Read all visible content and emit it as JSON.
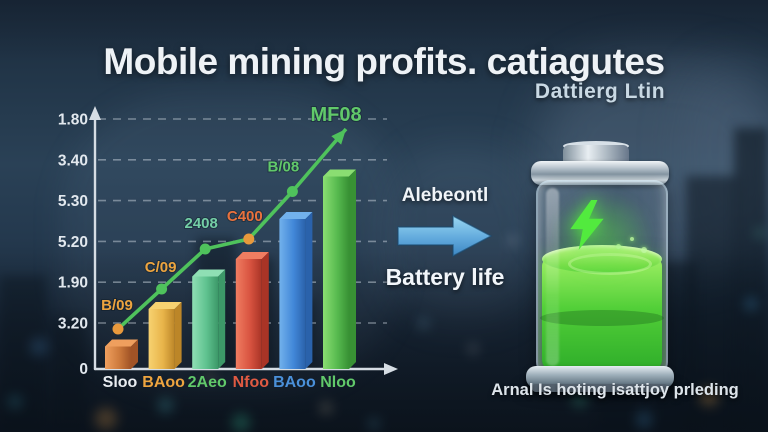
{
  "title": "Mobile mining profits. catiagutes",
  "colors": {
    "background_top": "#1b2a3b",
    "background_bottom": "#101a26",
    "title_text": "#eef2f6",
    "axis": "#d6dde4",
    "grid": "#c6d0da",
    "trend_line_green": "#4fc25c",
    "arrow_blue_light": "#9ad8f2",
    "arrow_blue_dark": "#4a94cc",
    "battery_liquid_green": "#52cf38",
    "bolt_green": "#52ea3e",
    "silver": "#b6c2cc"
  },
  "chart_data": {
    "type": "bar",
    "subtype": "bar-with-trend-line-overlay",
    "grid": "dashed-horizontal",
    "ylim": [
      0,
      100
    ],
    "y_tick_labels": [
      "1.80",
      "3.40",
      "5.30",
      "5.20",
      "1.90",
      "3.20"
    ],
    "y_origin_label": "0",
    "categories": [
      "Sloo",
      "BAoo",
      "2Aeo",
      "Nfoo",
      "BAoo",
      "Nloo"
    ],
    "category_colors": [
      "#e9edf1",
      "#eda43f",
      "#61c96a",
      "#e05a42",
      "#4a90d9",
      "#61c96a"
    ],
    "bars": {
      "values": [
        9,
        24,
        37,
        44,
        60,
        77
      ],
      "colors": [
        {
          "light": "#ef9f5e",
          "main": "#cd7a3c",
          "dark": "#a05326"
        },
        {
          "light": "#f7d271",
          "main": "#e8b44a",
          "dark": "#bc8628"
        },
        {
          "light": "#8fdfb4",
          "main": "#5fc28f",
          "dark": "#3c9868"
        },
        {
          "light": "#f07d61",
          "main": "#d85340",
          "dark": "#a93426"
        },
        {
          "light": "#72b1ec",
          "main": "#4187d8",
          "dark": "#2a62ab"
        },
        {
          "light": "#8ade72",
          "main": "#57ba4f",
          "dark": "#389134"
        }
      ]
    },
    "line_overlay": {
      "values": [
        16,
        32,
        48,
        52,
        71
      ],
      "arrow_end_value": 96,
      "color": "#4fc25c",
      "point_colors": [
        "#e8993c",
        "#4fc25c",
        "#4fc25c",
        "#e8993c",
        "#4fc25c"
      ],
      "point_labels": [
        {
          "text": "B/09",
          "color": "#eda43f"
        },
        {
          "text": "C/09",
          "color": "#eda43f"
        },
        {
          "text": "2408",
          "color": "#74cfa6"
        },
        {
          "text": "C400",
          "color": "#e9713c"
        },
        {
          "text": "B/08",
          "color": "#61c96a"
        },
        {
          "text": "MF08",
          "color": "#61c96a"
        }
      ]
    }
  },
  "transition": {
    "top_label": "Alebeontl",
    "arrow_icon": "right-arrow-icon",
    "bottom_label": "Battery life"
  },
  "battery_panel": {
    "title": "Dattierg Ltin",
    "bolt_icon": "lightning-bolt-icon",
    "fill_level_percent": 55,
    "caption": "Arnal Is hoting isattjoy prleding"
  }
}
